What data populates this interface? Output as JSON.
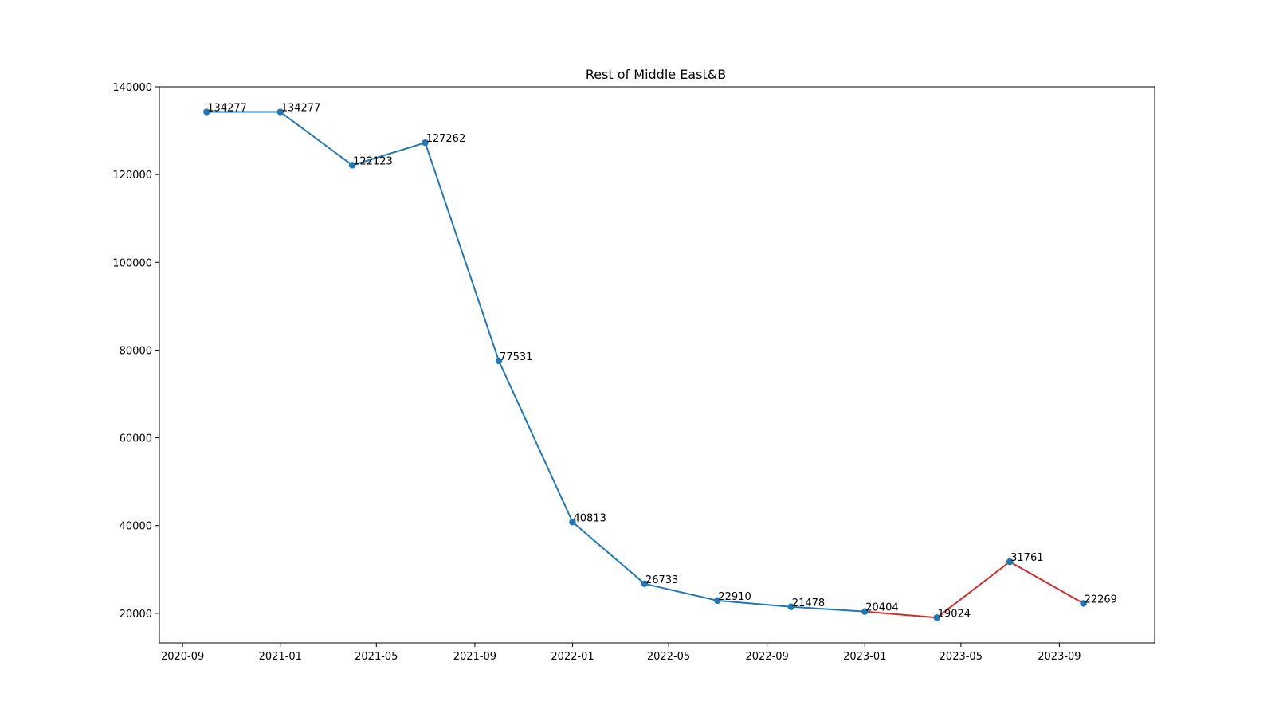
{
  "chart_data": {
    "type": "line",
    "title": "Rest of Middle East&B",
    "xlabel": "",
    "ylabel": "",
    "x": [
      "2020-10-01",
      "2021-01-01",
      "2021-04-01",
      "2021-07-01",
      "2021-10-01",
      "2022-01-01",
      "2022-04-01",
      "2022-07-01",
      "2022-10-01",
      "2023-01-01",
      "2023-04-01",
      "2023-07-01",
      "2023-10-01"
    ],
    "y": [
      134277,
      134277,
      122123,
      127262,
      77531,
      40813,
      26733,
      22910,
      21478,
      20404,
      19024,
      31761,
      22269
    ],
    "series": [
      {
        "color": "#1f77b4",
        "from_index": 0,
        "to_index": 9
      },
      {
        "color": "#d62728",
        "from_index": 9,
        "to_index": 12
      }
    ],
    "marker_color": "#1f77b4",
    "x_ticks": [
      "2020-09",
      "2021-01",
      "2021-05",
      "2021-09",
      "2022-01",
      "2022-05",
      "2022-09",
      "2023-01",
      "2023-05",
      "2023-09"
    ],
    "y_ticks": [
      20000,
      40000,
      60000,
      80000,
      100000,
      120000,
      140000
    ],
    "xlim": [
      "2020-08-03",
      "2023-12-29"
    ],
    "ylim": [
      13262.35,
      140000
    ],
    "grid": false,
    "legend": "none"
  }
}
